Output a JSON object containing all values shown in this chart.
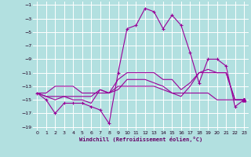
{
  "xlabel": "Windchill (Refroidissement éolien,°C)",
  "background_color": "#b2e0e0",
  "grid_color": "#ffffff",
  "line_color": "#990099",
  "xlim": [
    -0.5,
    23.5
  ],
  "ylim": [
    -19.5,
    -0.5
  ],
  "xticks": [
    0,
    1,
    2,
    3,
    4,
    5,
    6,
    7,
    8,
    9,
    10,
    11,
    12,
    13,
    14,
    15,
    16,
    17,
    18,
    19,
    20,
    21,
    22,
    23
  ],
  "yticks": [
    -1,
    -3,
    -5,
    -7,
    -9,
    -11,
    -13,
    -15,
    -17,
    -19
  ],
  "hours": [
    0,
    1,
    2,
    3,
    4,
    5,
    6,
    7,
    8,
    9,
    10,
    11,
    12,
    13,
    14,
    15,
    16,
    17,
    18,
    19,
    20,
    21,
    22,
    23
  ],
  "windchill": [
    -14,
    -15,
    -17,
    -15.5,
    -15.5,
    -15.5,
    -16,
    -16.5,
    -18.5,
    -11,
    -4.5,
    -4,
    -1.5,
    -2,
    -4.5,
    -2.5,
    -4,
    -8,
    -12.5,
    -9,
    -9,
    -10,
    -16,
    -15
  ],
  "temp": [
    -14,
    -14,
    -13,
    -13,
    -13,
    -14,
    -14,
    -14,
    -14,
    -13,
    -13,
    -13,
    -13,
    -13,
    -13.5,
    -14,
    -14,
    -14,
    -14,
    -14,
    -15,
    -15,
    -15,
    -15
  ],
  "apparent": [
    -14,
    -14.5,
    -15,
    -14.5,
    -14.5,
    -14.5,
    -14.5,
    -13.5,
    -14,
    -13.5,
    -12,
    -12,
    -12,
    -12.5,
    -13,
    -14,
    -14.5,
    -13,
    -11,
    -10.5,
    -11,
    -11,
    -15,
    -15
  ],
  "dewpoint": [
    -14,
    -14.5,
    -14.5,
    -14.5,
    -15,
    -15,
    -15.5,
    -13.5,
    -14,
    -12,
    -11,
    -11,
    -11,
    -11,
    -12,
    -12,
    -13.5,
    -12.5,
    -11,
    -11,
    -11,
    -11,
    -15,
    -15
  ]
}
